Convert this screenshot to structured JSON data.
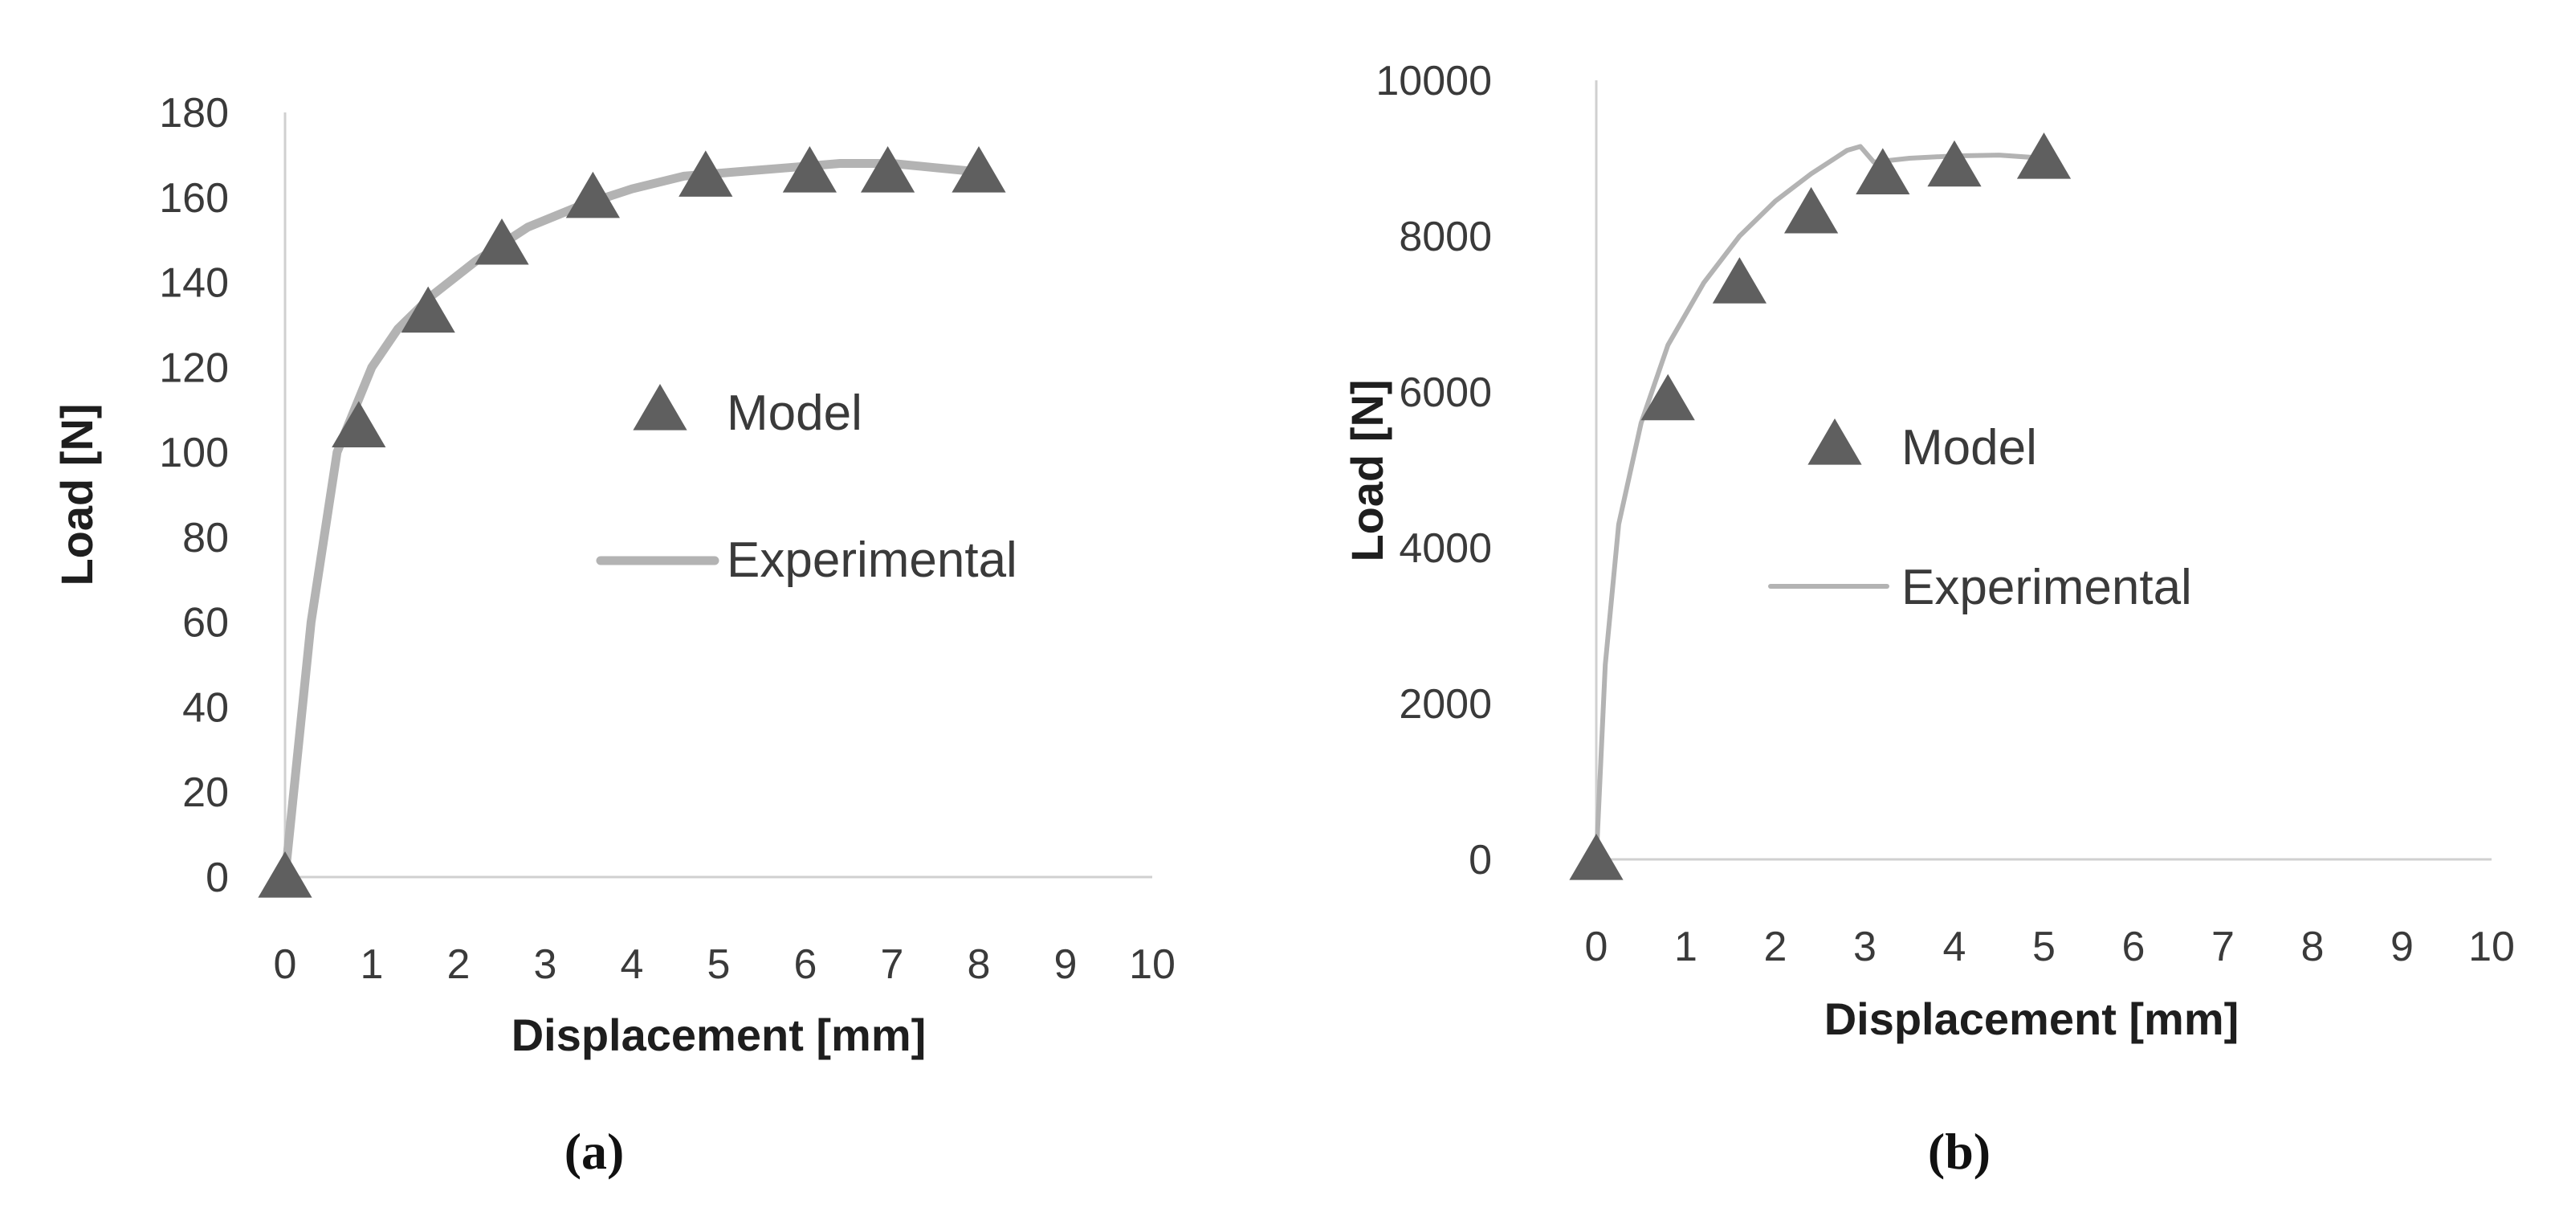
{
  "chart_data": [
    {
      "type": "scatter",
      "panel_label": "(a)",
      "xlabel": "Displacement [mm]",
      "ylabel": "Load [N]",
      "xlim": [
        0,
        10
      ],
      "ylim": [
        0,
        180
      ],
      "xticks": [
        0,
        1,
        2,
        3,
        4,
        5,
        6,
        7,
        8,
        9,
        10
      ],
      "yticks": [
        0,
        20,
        40,
        60,
        80,
        100,
        120,
        140,
        160,
        180
      ],
      "grid": false,
      "legend_position": "center-right",
      "series": [
        {
          "name": "Model",
          "kind": "triangle-markers",
          "color": "#5f5f5f",
          "x": [
            0,
            0.85,
            1.65,
            2.5,
            3.55,
            4.85,
            6.05,
            6.95,
            8.0
          ],
          "y": [
            0,
            106,
            133,
            149,
            160,
            165,
            166,
            166,
            166
          ]
        },
        {
          "name": "Experimental",
          "kind": "line",
          "color": "#b3b3b3",
          "x": [
            0,
            0.3,
            0.6,
            0.8,
            1.0,
            1.3,
            1.7,
            2.2,
            2.8,
            3.4,
            4.0,
            4.6,
            5.2,
            5.8,
            6.4,
            7.0,
            7.5,
            8.0
          ],
          "y": [
            0,
            60,
            100,
            110,
            120,
            129,
            137,
            145,
            153,
            158,
            162,
            165,
            166,
            167,
            168,
            168,
            167,
            166
          ]
        }
      ]
    },
    {
      "type": "scatter",
      "panel_label": "(b)",
      "xlabel": "Displacement [mm]",
      "ylabel": "Load [N]",
      "xlim": [
        0,
        10
      ],
      "ylim": [
        0,
        10000
      ],
      "xticks": [
        0,
        1,
        2,
        3,
        4,
        5,
        6,
        7,
        8,
        9,
        10
      ],
      "yticks": [
        0,
        2000,
        4000,
        6000,
        8000,
        10000
      ],
      "grid": false,
      "legend_position": "center-right",
      "series": [
        {
          "name": "Model",
          "kind": "triangle-markers",
          "color": "#5f5f5f",
          "x": [
            0,
            0.8,
            1.6,
            2.4,
            3.2,
            4.0,
            5.0
          ],
          "y": [
            0,
            5900,
            7400,
            8300,
            8800,
            8900,
            9000
          ]
        },
        {
          "name": "Experimental",
          "kind": "line",
          "color": "#b3b3b3",
          "x": [
            0,
            0.1,
            0.25,
            0.5,
            0.8,
            1.2,
            1.6,
            2.0,
            2.4,
            2.8,
            2.95,
            3.1,
            3.5,
            4.0,
            4.5,
            5.0
          ],
          "y": [
            0,
            2500,
            4300,
            5600,
            6600,
            7400,
            8000,
            8450,
            8800,
            9100,
            9150,
            8950,
            9000,
            9030,
            9040,
            9000
          ]
        }
      ]
    }
  ]
}
